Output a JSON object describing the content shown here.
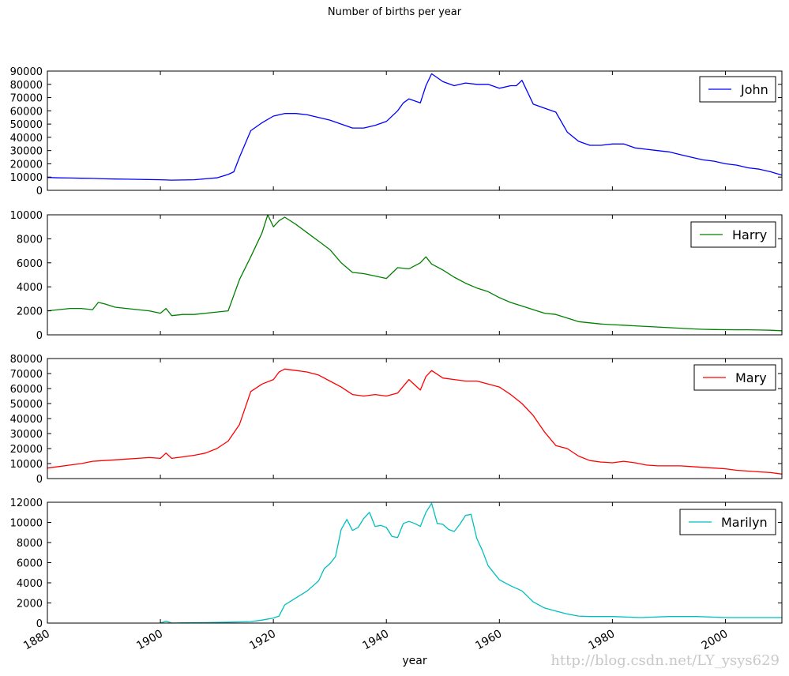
{
  "chart_data": {
    "type": "line",
    "title": "Number of births per year",
    "xlabel": "year",
    "xlim": [
      1880,
      2010
    ],
    "xticks": [
      "1880",
      "1900",
      "1920",
      "1940",
      "1960",
      "1980",
      "2000"
    ],
    "grid": false,
    "legend_position": "top-right",
    "panels": [
      {
        "name": "John",
        "color": "#0000ff",
        "ylim": [
          0,
          90000
        ],
        "yticks": [
          "0",
          "10000",
          "20000",
          "30000",
          "40000",
          "50000",
          "60000",
          "70000",
          "80000",
          "90000"
        ],
        "x": [
          1880,
          1882,
          1884,
          1886,
          1888,
          1890,
          1892,
          1894,
          1896,
          1898,
          1900,
          1902,
          1904,
          1906,
          1908,
          1910,
          1912,
          1913,
          1914,
          1916,
          1918,
          1920,
          1922,
          1924,
          1926,
          1928,
          1930,
          1932,
          1934,
          1936,
          1938,
          1940,
          1942,
          1943,
          1944,
          1946,
          1947,
          1948,
          1950,
          1952,
          1954,
          1956,
          1958,
          1960,
          1962,
          1963,
          1964,
          1966,
          1968,
          1970,
          1972,
          1974,
          1976,
          1978,
          1980,
          1982,
          1984,
          1986,
          1988,
          1990,
          1992,
          1994,
          1996,
          1998,
          2000,
          2002,
          2004,
          2006,
          2008,
          2010
        ],
        "values": [
          9700,
          9400,
          9300,
          9100,
          9000,
          8700,
          8500,
          8400,
          8300,
          8100,
          8000,
          7700,
          7800,
          8000,
          8700,
          9400,
          12000,
          14000,
          25000,
          45000,
          51000,
          56000,
          58000,
          58000,
          57000,
          55000,
          53000,
          50000,
          47000,
          47000,
          49000,
          52000,
          60000,
          66000,
          69000,
          66000,
          79000,
          88000,
          82000,
          79000,
          81000,
          80000,
          80000,
          77000,
          79000,
          79000,
          83000,
          65000,
          62000,
          59000,
          44000,
          37000,
          34000,
          34000,
          35000,
          35000,
          32000,
          31000,
          30000,
          29000,
          27000,
          25000,
          23000,
          22000,
          20000,
          19000,
          17000,
          16000,
          14000,
          11500
        ]
      },
      {
        "name": "Harry",
        "color": "#008000",
        "ylim": [
          0,
          10000
        ],
        "yticks": [
          "0",
          "2000",
          "4000",
          "6000",
          "8000",
          "10000"
        ],
        "x": [
          1880,
          1882,
          1884,
          1886,
          1888,
          1889,
          1890,
          1892,
          1894,
          1896,
          1898,
          1900,
          1901,
          1902,
          1904,
          1906,
          1908,
          1910,
          1912,
          1914,
          1916,
          1918,
          1919,
          1920,
          1921,
          1922,
          1924,
          1926,
          1928,
          1930,
          1932,
          1934,
          1936,
          1938,
          1940,
          1942,
          1944,
          1946,
          1947,
          1948,
          1950,
          1952,
          1954,
          1956,
          1958,
          1960,
          1962,
          1964,
          1966,
          1968,
          1970,
          1972,
          1974,
          1976,
          1978,
          1980,
          1982,
          1984,
          1986,
          1988,
          1990,
          1992,
          1994,
          1996,
          1998,
          2000,
          2002,
          2004,
          2006,
          2008,
          2010
        ],
        "values": [
          2000,
          2100,
          2200,
          2200,
          2100,
          2700,
          2600,
          2300,
          2200,
          2100,
          2000,
          1800,
          2200,
          1600,
          1700,
          1700,
          1800,
          1900,
          2000,
          4600,
          6500,
          8500,
          10000,
          9000,
          9500,
          9800,
          9200,
          8500,
          7800,
          7100,
          6000,
          5200,
          5100,
          4900,
          4700,
          5600,
          5500,
          6000,
          6500,
          5900,
          5400,
          4800,
          4300,
          3900,
          3600,
          3100,
          2700,
          2400,
          2100,
          1800,
          1700,
          1400,
          1100,
          1000,
          900,
          850,
          800,
          750,
          700,
          650,
          600,
          550,
          500,
          460,
          440,
          430,
          420,
          420,
          400,
          380,
          340
        ]
      },
      {
        "name": "Mary",
        "color": "#ff0000",
        "ylim": [
          0,
          80000
        ],
        "yticks": [
          "0",
          "10000",
          "20000",
          "30000",
          "40000",
          "50000",
          "60000",
          "70000",
          "80000"
        ],
        "x": [
          1880,
          1882,
          1884,
          1886,
          1888,
          1890,
          1892,
          1894,
          1896,
          1898,
          1900,
          1901,
          1902,
          1904,
          1906,
          1908,
          1910,
          1912,
          1914,
          1916,
          1918,
          1920,
          1921,
          1922,
          1924,
          1926,
          1928,
          1930,
          1932,
          1934,
          1936,
          1938,
          1940,
          1942,
          1944,
          1946,
          1947,
          1948,
          1950,
          1952,
          1954,
          1956,
          1958,
          1960,
          1962,
          1964,
          1966,
          1968,
          1970,
          1972,
          1974,
          1976,
          1978,
          1980,
          1982,
          1984,
          1986,
          1988,
          1990,
          1992,
          1994,
          1996,
          1998,
          2000,
          2002,
          2004,
          2006,
          2008,
          2010
        ],
        "values": [
          7000,
          8000,
          9000,
          10000,
          11500,
          12000,
          12500,
          13000,
          13500,
          14000,
          13500,
          17000,
          13500,
          14500,
          15500,
          17000,
          20000,
          25000,
          36000,
          58000,
          63000,
          66000,
          71000,
          73000,
          72000,
          71000,
          69000,
          65000,
          61000,
          56000,
          55000,
          56000,
          55000,
          57000,
          66000,
          59000,
          68000,
          72000,
          67000,
          66000,
          65000,
          65000,
          63000,
          61000,
          56000,
          50000,
          42000,
          31000,
          22000,
          20000,
          15000,
          12000,
          11000,
          10500,
          11500,
          10500,
          9000,
          8500,
          8500,
          8500,
          8000,
          7500,
          7000,
          6500,
          5500,
          5000,
          4500,
          4000,
          3000
        ]
      },
      {
        "name": "Marilyn",
        "color": "#00bfbf",
        "ylim": [
          0,
          12000
        ],
        "yticks": [
          "0",
          "2000",
          "4000",
          "6000",
          "8000",
          "10000",
          "12000"
        ],
        "x": [
          1900,
          1901,
          1902,
          1904,
          1908,
          1912,
          1916,
          1918,
          1920,
          1921,
          1922,
          1924,
          1926,
          1928,
          1929,
          1930,
          1931,
          1932,
          1933,
          1934,
          1935,
          1936,
          1937,
          1938,
          1939,
          1940,
          1941,
          1942,
          1943,
          1944,
          1945,
          1946,
          1947,
          1948,
          1949,
          1950,
          1951,
          1952,
          1953,
          1954,
          1955,
          1956,
          1957,
          1958,
          1960,
          1962,
          1964,
          1966,
          1968,
          1970,
          1972,
          1974,
          1976,
          1980,
          1985,
          1990,
          1995,
          2000,
          2005,
          2010
        ],
        "values": [
          0,
          200,
          0,
          30,
          50,
          90,
          150,
          300,
          500,
          700,
          1800,
          2500,
          3200,
          4200,
          5400,
          5900,
          6600,
          9300,
          10300,
          9200,
          9500,
          10400,
          11000,
          9600,
          9700,
          9500,
          8600,
          8500,
          9900,
          10100,
          9900,
          9600,
          11000,
          11900,
          9900,
          9800,
          9300,
          9100,
          9800,
          10700,
          10800,
          8400,
          7200,
          5700,
          4300,
          3700,
          3200,
          2100,
          1500,
          1200,
          900,
          700,
          650,
          650,
          550,
          650,
          650,
          550,
          550,
          550
        ]
      }
    ]
  },
  "watermark": "http://blog.csdn.net/LY_ysys629"
}
